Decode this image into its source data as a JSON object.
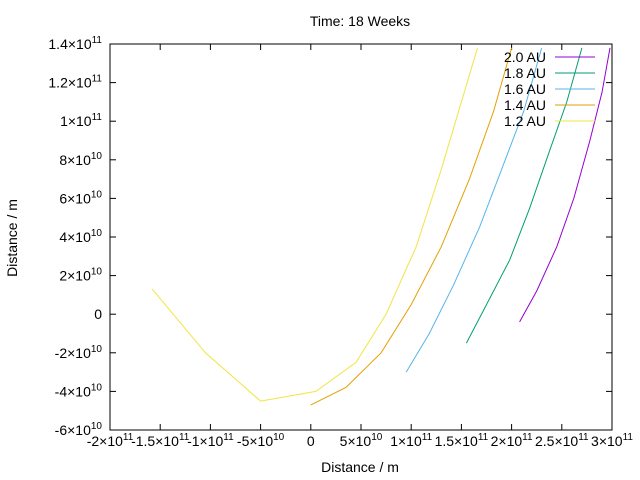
{
  "chart_data": {
    "type": "line",
    "title": "Time: 18 Weeks",
    "xlabel": "Distance / m",
    "ylabel": "Distance / m",
    "xlim": [
      -200000000000,
      300000000000
    ],
    "ylim": [
      -60000000000,
      140000000000
    ],
    "legend_position": "top-right",
    "x_ticks": [
      {
        "value": -200000000000,
        "mant": "-2",
        "exp": "11"
      },
      {
        "value": -150000000000,
        "mant": "-1.5",
        "exp": "11"
      },
      {
        "value": -100000000000,
        "mant": "-1",
        "exp": "11"
      },
      {
        "value": -50000000000,
        "mant": "-5",
        "exp": "10"
      },
      {
        "value": 0,
        "mant": "0",
        "exp": ""
      },
      {
        "value": 50000000000,
        "mant": "5",
        "exp": "10"
      },
      {
        "value": 100000000000,
        "mant": "1",
        "exp": "11"
      },
      {
        "value": 150000000000,
        "mant": "1.5",
        "exp": "11"
      },
      {
        "value": 200000000000,
        "mant": "2",
        "exp": "11"
      },
      {
        "value": 250000000000,
        "mant": "2.5",
        "exp": "11"
      },
      {
        "value": 300000000000,
        "mant": "3",
        "exp": "11"
      }
    ],
    "y_ticks": [
      {
        "value": -60000000000,
        "mant": "-6",
        "exp": "10"
      },
      {
        "value": -40000000000,
        "mant": "-4",
        "exp": "10"
      },
      {
        "value": -20000000000,
        "mant": "-2",
        "exp": "10"
      },
      {
        "value": 0,
        "mant": "0",
        "exp": ""
      },
      {
        "value": 20000000000,
        "mant": "2",
        "exp": "10"
      },
      {
        "value": 40000000000,
        "mant": "4",
        "exp": "10"
      },
      {
        "value": 60000000000,
        "mant": "6",
        "exp": "10"
      },
      {
        "value": 80000000000,
        "mant": "8",
        "exp": "10"
      },
      {
        "value": 100000000000,
        "mant": "1",
        "exp": "11"
      },
      {
        "value": 120000000000,
        "mant": "1.2",
        "exp": "11"
      },
      {
        "value": 140000000000,
        "mant": "1.4",
        "exp": "11"
      }
    ],
    "series": [
      {
        "name": "2.0 AU",
        "color": "#9400d3",
        "x": [
          208000000000.0,
          225000000000.0,
          245000000000.0,
          262000000000.0,
          278000000000.0,
          290000000000.0,
          298000000000.0
        ],
        "y": [
          -4000000000.0,
          12000000000.0,
          35000000000.0,
          60000000000.0,
          90000000000.0,
          115000000000.0,
          138000000000.0
        ]
      },
      {
        "name": "1.8 AU",
        "color": "#009e73",
        "x": [
          155000000000.0,
          175000000000.0,
          198000000000.0,
          218000000000.0,
          238000000000.0,
          255000000000.0,
          270000000000.0
        ],
        "y": [
          -15000000000.0,
          5000000000.0,
          28000000000.0,
          55000000000.0,
          85000000000.0,
          110000000000.0,
          138000000000.0
        ]
      },
      {
        "name": "1.6 AU",
        "color": "#56b4e9",
        "x": [
          95000000000.0,
          118000000000.0,
          142000000000.0,
          168000000000.0,
          190000000000.0,
          212000000000.0,
          230000000000.0
        ],
        "y": [
          -30000000000.0,
          -10000000000.0,
          15000000000.0,
          45000000000.0,
          75000000000.0,
          105000000000.0,
          138000000000.0
        ]
      },
      {
        "name": "1.4 AU",
        "color": "#e69f00",
        "x": [
          0.0,
          35000000000.0,
          70000000000.0,
          100000000000.0,
          130000000000.0,
          158000000000.0,
          182000000000.0,
          200000000000.0
        ],
        "y": [
          -47000000000.0,
          -38000000000.0,
          -20000000000.0,
          5000000000.0,
          35000000000.0,
          70000000000.0,
          105000000000.0,
          138000000000.0
        ]
      },
      {
        "name": "1.2 AU",
        "color": "#f0e442",
        "x": [
          -158000000000.0,
          -105000000000.0,
          -50000000000.0,
          5000000000.0,
          45000000000.0,
          75000000000.0,
          105000000000.0,
          130000000000.0,
          150000000000.0,
          166000000000.0
        ],
        "y": [
          13000000000.0,
          -20000000000.0,
          -45000000000.0,
          -40000000000.0,
          -25000000000.0,
          0.0,
          35000000000.0,
          75000000000.0,
          110000000000.0,
          138000000000.0
        ]
      }
    ]
  }
}
